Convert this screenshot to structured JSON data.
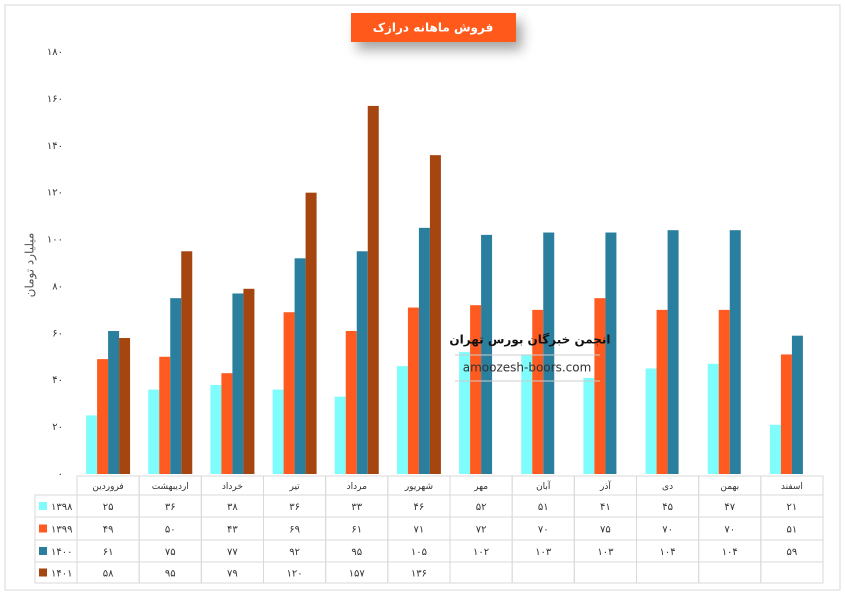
{
  "chart_data": {
    "type": "bar",
    "title": "فروش ماهانه درازک",
    "y_label": "میلیارد تومان",
    "watermark": "انجمن خبرگان بورس تهران",
    "watermark_url": "amoozesh-boors.com",
    "categories": [
      "فروردین",
      "اردیبهشت",
      "خرداد",
      "تیر",
      "مرداد",
      "شهریور",
      "مهر",
      "آبان",
      "آذر",
      "دی",
      "بهمن",
      "اسفند"
    ],
    "series": [
      {
        "name": "۱۳۹۸",
        "color": "#7ffcfc",
        "values": [
          25,
          36,
          38,
          36,
          33,
          46,
          52,
          51,
          41,
          45,
          47,
          21
        ],
        "value_labels": [
          "۲۵",
          "۳۶",
          "۳۸",
          "۳۶",
          "۳۳",
          "۴۶",
          "۵۲",
          "۵۱",
          "۴۱",
          "۴۵",
          "۴۷",
          "۲۱"
        ]
      },
      {
        "name": "۱۳۹۹",
        "color": "#ff5a1f",
        "values": [
          49,
          50,
          43,
          69,
          61,
          71,
          72,
          70,
          75,
          70,
          70,
          51
        ],
        "value_labels": [
          "۴۹",
          "۵۰",
          "۴۳",
          "۶۹",
          "۶۱",
          "۷۱",
          "۷۲",
          "۷۰",
          "۷۵",
          "۷۰",
          "۷۰",
          "۵۱"
        ]
      },
      {
        "name": "۱۴۰۰",
        "color": "#2a7f9e",
        "values": [
          61,
          75,
          77,
          92,
          95,
          105,
          102,
          103,
          103,
          104,
          104,
          59
        ],
        "value_labels": [
          "۶۱",
          "۷۵",
          "۷۷",
          "۹۲",
          "۹۵",
          "۱۰۵",
          "۱۰۲",
          "۱۰۳",
          "۱۰۳",
          "۱۰۴",
          "۱۰۴",
          "۵۹"
        ]
      },
      {
        "name": "۱۴۰۱",
        "color": "#a5450f",
        "values": [
          58,
          95,
          79,
          120,
          157,
          136,
          null,
          null,
          null,
          null,
          null,
          null
        ],
        "value_labels": [
          "۵۸",
          "۹۵",
          "۷۹",
          "۱۲۰",
          "۱۵۷",
          "۱۳۶",
          null,
          null,
          null,
          null,
          null,
          null
        ]
      }
    ],
    "ylim": [
      0,
      180
    ],
    "yticks": [
      {
        "value": 0,
        "label": "۰"
      },
      {
        "value": 20,
        "label": "۲۰"
      },
      {
        "value": 40,
        "label": "۴۰"
      },
      {
        "value": 60,
        "label": "۶۰"
      },
      {
        "value": 80,
        "label": "۸۰"
      },
      {
        "value": 100,
        "label": "۱۰۰"
      },
      {
        "value": 120,
        "label": "۱۲۰"
      },
      {
        "value": 140,
        "label": "۱۴۰"
      },
      {
        "value": 160,
        "label": "۱۶۰"
      },
      {
        "value": 180,
        "label": "۱۸۰"
      }
    ],
    "grid": false
  }
}
